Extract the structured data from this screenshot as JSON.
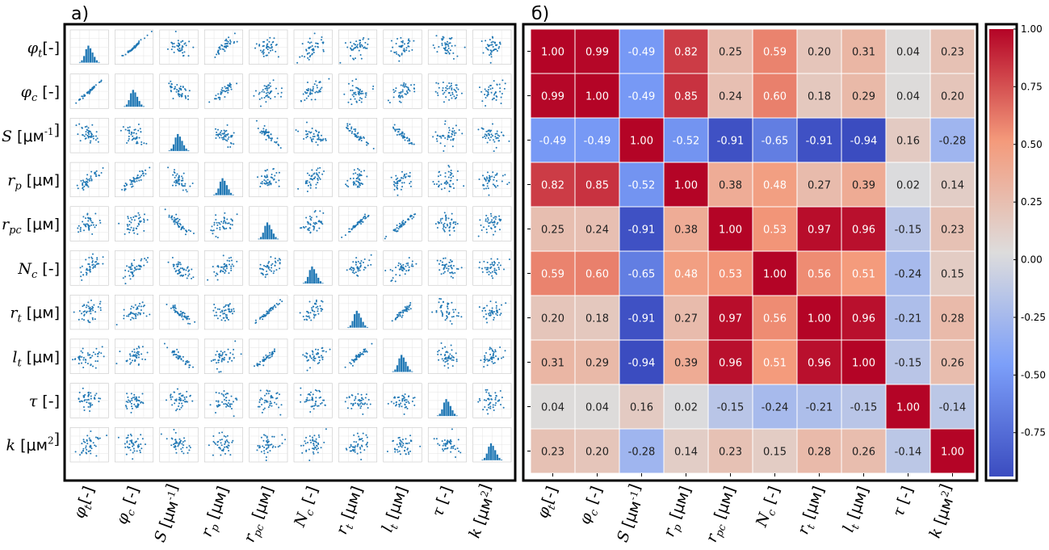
{
  "panel_labels": {
    "a": "а)",
    "b": "б)"
  },
  "variables": [
    "φt[-]",
    "φc [-]",
    "S [μм-1]",
    "rp [μм]",
    "rpc [μм]",
    "Nc [-]",
    "rt [μм]",
    "lt [μм]",
    "τ [-]",
    "k [μм2]"
  ],
  "variable_labels": [
    {
      "sym": "φ",
      "sub": "t",
      "sup": "",
      "unit": "[-]"
    },
    {
      "sym": "φ",
      "sub": "c",
      "sup": "",
      "unit": " [-]"
    },
    {
      "sym": "S",
      "sub": "",
      "sup": "-1",
      "unit": " [μм]"
    },
    {
      "sym": "r",
      "sub": "p",
      "sup": "",
      "unit": " [μм]"
    },
    {
      "sym": "r",
      "sub": "pc",
      "sup": "",
      "unit": " [μм]"
    },
    {
      "sym": "N",
      "sub": "c",
      "sup": "",
      "unit": " [-]"
    },
    {
      "sym": "r",
      "sub": "t",
      "sup": "",
      "unit": " [μм]"
    },
    {
      "sym": "l",
      "sub": "t",
      "sup": "",
      "unit": " [μм]"
    },
    {
      "sym": "τ",
      "sub": "",
      "sup": "",
      "unit": " [-]"
    },
    {
      "sym": "k",
      "sub": "",
      "sup": "2",
      "unit": " [μм]"
    }
  ],
  "chart_data": [
    {
      "type": "scatter",
      "title": "",
      "description_of_layout": "pairwise scatter matrix with histograms on the diagonal",
      "variables": [
        "φt",
        "φc",
        "S",
        "rp",
        "rpc",
        "Nc",
        "rt",
        "lt",
        "τ",
        "k"
      ],
      "point_color": "#1f77b4",
      "grid": true
    },
    {
      "type": "heatmap",
      "rows": [
        "φt[-]",
        "φc [-]",
        "S [μм-1]",
        "rp [μм]",
        "rpc [μм]",
        "Nc [-]",
        "rt [μм]",
        "lt [μм]",
        "τ [-]",
        "k [μм2]"
      ],
      "columns": [
        "φt[-]",
        "φc [-]",
        "S [μм-1]",
        "rp [μм]",
        "rpc [μм]",
        "Nc [-]",
        "rt [μм]",
        "lt [μм]",
        "τ [-]",
        "k [μм2]"
      ],
      "values": [
        [
          1.0,
          0.99,
          -0.49,
          0.82,
          0.25,
          0.59,
          0.2,
          0.31,
          0.04,
          0.23
        ],
        [
          0.99,
          1.0,
          -0.49,
          0.85,
          0.24,
          0.6,
          0.18,
          0.29,
          0.04,
          0.2
        ],
        [
          -0.49,
          -0.49,
          1.0,
          -0.52,
          -0.91,
          -0.65,
          -0.91,
          -0.94,
          0.16,
          -0.28
        ],
        [
          0.82,
          0.85,
          -0.52,
          1.0,
          0.38,
          0.48,
          0.27,
          0.39,
          0.02,
          0.14
        ],
        [
          0.25,
          0.24,
          -0.91,
          0.38,
          1.0,
          0.53,
          0.97,
          0.96,
          -0.15,
          0.23
        ],
        [
          0.59,
          0.6,
          -0.65,
          0.48,
          0.53,
          1.0,
          0.56,
          0.51,
          -0.24,
          0.15
        ],
        [
          0.2,
          0.18,
          -0.91,
          0.27,
          0.97,
          0.56,
          1.0,
          0.96,
          -0.21,
          0.28
        ],
        [
          0.31,
          0.29,
          -0.94,
          0.39,
          0.96,
          0.51,
          0.96,
          1.0,
          -0.15,
          0.26
        ],
        [
          0.04,
          0.04,
          0.16,
          0.02,
          -0.15,
          -0.24,
          -0.21,
          -0.15,
          1.0,
          -0.14
        ],
        [
          0.23,
          0.2,
          -0.28,
          0.14,
          0.23,
          0.15,
          0.28,
          0.26,
          -0.14,
          1.0
        ]
      ],
      "colormap": "coolwarm",
      "vmin": -0.94,
      "vmax": 1.0,
      "colorbar_ticks": [
        "1.00",
        "0.75",
        "0.50",
        "0.25",
        "0.00",
        "-0.25",
        "-0.50",
        "-0.75"
      ],
      "colorbar_tick_values": [
        1.0,
        0.75,
        0.5,
        0.25,
        0.0,
        -0.25,
        -0.5,
        -0.75
      ]
    }
  ]
}
